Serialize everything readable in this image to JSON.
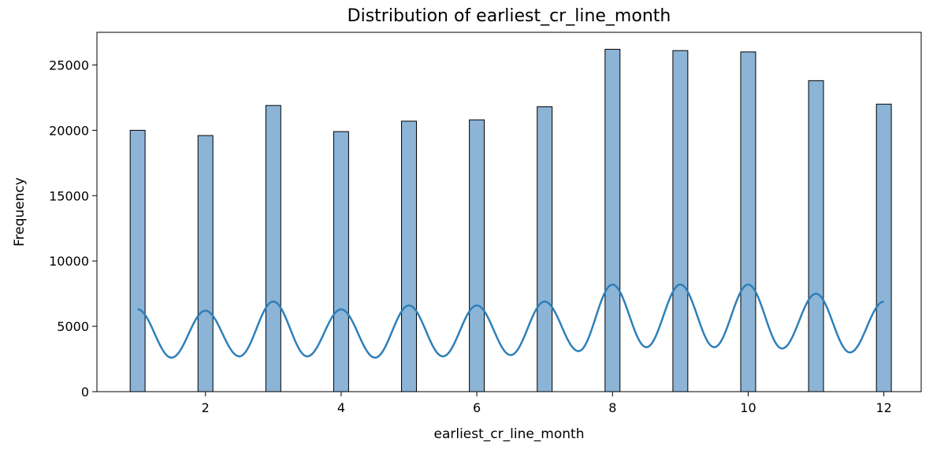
{
  "chart_data": {
    "type": "bar",
    "title": "Distribution of earliest_cr_line_month",
    "xlabel": "earliest_cr_line_month",
    "ylabel": "Frequency",
    "xlim": [
      0.4,
      12.55
    ],
    "ylim": [
      0,
      27500
    ],
    "xticks": [
      2,
      4,
      6,
      8,
      10,
      12
    ],
    "yticks": [
      0,
      5000,
      10000,
      15000,
      20000,
      25000
    ],
    "bar_width": 0.22,
    "x": [
      1,
      2,
      3,
      4,
      5,
      6,
      7,
      8,
      9,
      10,
      11,
      12
    ],
    "values": [
      20000,
      19600,
      21900,
      19900,
      20700,
      20800,
      21800,
      26200,
      26100,
      26000,
      23800,
      22000
    ],
    "kde": {
      "x": [
        1.0,
        1.5,
        2.0,
        2.5,
        3.0,
        3.5,
        4.0,
        4.5,
        5.0,
        5.5,
        6.0,
        6.5,
        7.0,
        7.5,
        8.0,
        8.5,
        9.0,
        9.5,
        10.0,
        10.5,
        11.0,
        11.5,
        12.0
      ],
      "values": [
        6300,
        2600,
        6200,
        2700,
        6900,
        2700,
        6300,
        2600,
        6600,
        2700,
        6600,
        2800,
        6900,
        3100,
        8200,
        3400,
        8200,
        3400,
        8200,
        3300,
        7500,
        3000,
        6900
      ]
    },
    "grid": false,
    "legend": "none",
    "colors": {
      "bar_fill": "#8cb4d6",
      "bar_edge": "#000000",
      "kde_line": "#2e80b9",
      "axis": "#000000"
    }
  }
}
